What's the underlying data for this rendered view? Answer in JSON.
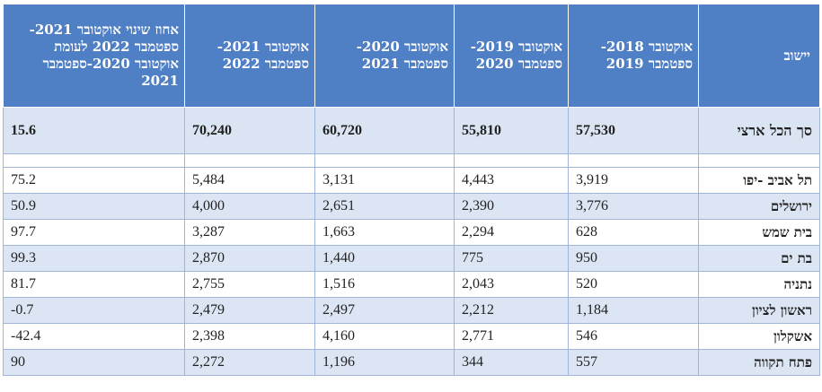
{
  "table": {
    "headers": {
      "city": "יישוב",
      "period_2018_2019": "אוקטובר 2018- ספטמבר 2019",
      "period_2019_2020": "אוקטובר 2019- ספטמבר 2020",
      "period_2020_2021": "אוקטובר 2020- ספטמבר 2021",
      "period_2021_2022": "אוקטובר 2021- ספטמבר 2022",
      "change": "אחוז שינוי אוקטובר 2021- ספטמבר 2022 לעומת אוקטובר 2020-ספטמבר 2021"
    },
    "total": {
      "city": "סך הכל ארצי",
      "v2018_2019": "57,530",
      "v2019_2020": "55,810",
      "v2020_2021": "60,720",
      "v2021_2022": "70,240",
      "change": "15.6"
    },
    "rows": [
      {
        "city": "תל אביב -יפו",
        "v2018_2019": "3,919",
        "v2019_2020": "4,443",
        "v2020_2021": "3,131",
        "v2021_2022": "5,484",
        "change": "75.2"
      },
      {
        "city": "ירושלים",
        "v2018_2019": "3,776",
        "v2019_2020": "2,390",
        "v2020_2021": "2,651",
        "v2021_2022": "4,000",
        "change": "50.9"
      },
      {
        "city": "בית שמש",
        "v2018_2019": "628",
        "v2019_2020": "2,294",
        "v2020_2021": "1,663",
        "v2021_2022": "3,287",
        "change": "97.7"
      },
      {
        "city": "בת ים",
        "v2018_2019": "950",
        "v2019_2020": "775",
        "v2020_2021": "1,440",
        "v2021_2022": "2,870",
        "change": "99.3"
      },
      {
        "city": "נתניה",
        "v2018_2019": "520",
        "v2019_2020": "2,043",
        "v2020_2021": "1,516",
        "v2021_2022": "2,755",
        "change": "81.7"
      },
      {
        "city": "ראשון לציון",
        "v2018_2019": "1,184",
        "v2019_2020": "2,212",
        "v2020_2021": "2,497",
        "v2021_2022": "2,479",
        "change": "0.7-"
      },
      {
        "city": "אשקלון",
        "v2018_2019": "546",
        "v2019_2020": "2,771",
        "v2020_2021": "4,160",
        "v2021_2022": "2,398",
        "change": "42.4-"
      },
      {
        "city": "פתח תקווה",
        "v2018_2019": "557",
        "v2019_2020": "344",
        "v2020_2021": "1,196",
        "v2021_2022": "2,272",
        "change": "90"
      }
    ]
  },
  "colors": {
    "header_bg": "#4f7fc4",
    "total_bg": "#dae4f2",
    "alt_row_bg": "#dbe5f3"
  }
}
